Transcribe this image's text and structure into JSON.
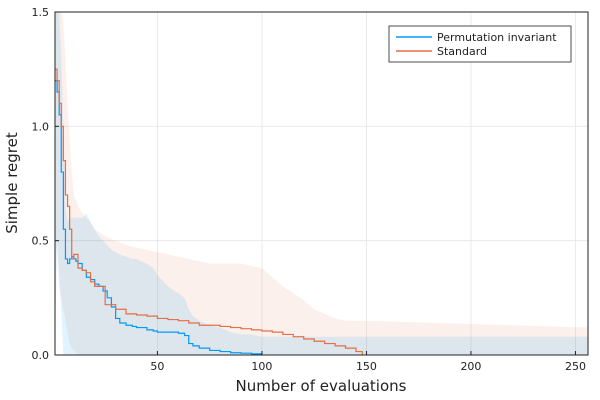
{
  "chart_data": {
    "type": "line",
    "xlabel": "Number of evaluations",
    "ylabel": "Simple regret",
    "xlim": [
      1,
      256
    ],
    "ylim": [
      0,
      1.5
    ],
    "x_ticks": [
      50,
      100,
      150,
      200,
      250
    ],
    "y_ticks": [
      0.0,
      0.5,
      1.0,
      1.5
    ],
    "x_tick_labels": [
      "50",
      "100",
      "150",
      "200",
      "250"
    ],
    "y_tick_labels": [
      "0.0",
      "0.5",
      "1.0",
      "1.5"
    ],
    "grid": true,
    "legend_position": "top-right",
    "series": [
      {
        "name": "Permutation invariant",
        "color": "#009AFA",
        "band_opacity": 0.12,
        "x": [
          1,
          2,
          3,
          4,
          5,
          6,
          7,
          8,
          9,
          10,
          11,
          12,
          14,
          16,
          18,
          20,
          22,
          24,
          26,
          28,
          30,
          32,
          35,
          38,
          40,
          42,
          45,
          48,
          50,
          55,
          60,
          63,
          65,
          67,
          70,
          75,
          80,
          85,
          90,
          95,
          100,
          110,
          256
        ],
        "y": [
          1.2,
          1.15,
          1.05,
          0.8,
          0.55,
          0.42,
          0.4,
          0.42,
          0.43,
          0.42,
          0.41,
          0.4,
          0.37,
          0.34,
          0.33,
          0.31,
          0.3,
          0.28,
          0.25,
          0.21,
          0.16,
          0.14,
          0.13,
          0.125,
          0.12,
          0.12,
          0.11,
          0.105,
          0.1,
          0.1,
          0.095,
          0.085,
          0.05,
          0.04,
          0.03,
          0.02,
          0.015,
          0.01,
          0.008,
          0.005,
          0.0,
          0.0,
          0.0
        ],
        "upper": [
          1.5,
          1.5,
          1.5,
          1.3,
          1.0,
          0.65,
          0.58,
          0.6,
          0.6,
          0.6,
          0.6,
          0.6,
          0.6,
          0.62,
          0.58,
          0.55,
          0.52,
          0.5,
          0.48,
          0.46,
          0.45,
          0.44,
          0.43,
          0.42,
          0.42,
          0.41,
          0.4,
          0.38,
          0.35,
          0.3,
          0.27,
          0.25,
          0.2,
          0.17,
          0.15,
          0.13,
          0.12,
          0.1,
          0.09,
          0.09,
          0.08,
          0.08,
          0.08
        ],
        "lower": [
          0.0,
          0.5,
          0.35,
          0.2,
          0.0,
          0.0,
          0.0,
          0.0,
          0.0,
          0.0,
          0.0,
          0.0,
          0.0,
          0.0,
          0.0,
          0.0,
          0.0,
          0.0,
          0.0,
          0.0,
          0.0,
          0.0,
          0.0,
          0.0,
          0.0,
          0.0,
          0.0,
          0.0,
          0.0,
          0.0,
          0.0,
          0.0,
          0.0,
          0.0,
          0.0,
          0.0,
          0.0,
          0.0,
          0.0,
          0.0,
          0.0,
          0.0,
          0.0
        ]
      },
      {
        "name": "Standard",
        "color": "#E26F46",
        "band_opacity": 0.1,
        "x": [
          1,
          2,
          3,
          4,
          5,
          6,
          7,
          8,
          9,
          10,
          12,
          14,
          16,
          18,
          20,
          25,
          30,
          35,
          40,
          45,
          50,
          55,
          60,
          65,
          70,
          75,
          80,
          85,
          90,
          95,
          100,
          105,
          110,
          115,
          120,
          125,
          130,
          135,
          140,
          145,
          148,
          256
        ],
        "y": [
          1.25,
          1.2,
          1.1,
          1.0,
          0.85,
          0.7,
          0.65,
          0.55,
          0.42,
          0.44,
          0.38,
          0.37,
          0.36,
          0.32,
          0.3,
          0.22,
          0.2,
          0.18,
          0.175,
          0.17,
          0.16,
          0.155,
          0.15,
          0.14,
          0.13,
          0.13,
          0.125,
          0.12,
          0.115,
          0.11,
          0.105,
          0.1,
          0.09,
          0.08,
          0.07,
          0.06,
          0.05,
          0.04,
          0.03,
          0.015,
          0.0,
          0.0
        ],
        "upper": [
          1.5,
          1.5,
          1.5,
          1.5,
          1.45,
          1.3,
          1.1,
          0.95,
          0.8,
          0.7,
          0.65,
          0.62,
          0.6,
          0.58,
          0.55,
          0.52,
          0.5,
          0.48,
          0.47,
          0.46,
          0.45,
          0.44,
          0.43,
          0.42,
          0.41,
          0.4,
          0.4,
          0.4,
          0.4,
          0.39,
          0.38,
          0.34,
          0.3,
          0.27,
          0.24,
          0.2,
          0.18,
          0.16,
          0.15,
          0.15,
          0.15,
          0.12
        ],
        "lower": [
          0.5,
          0.45,
          0.3,
          0.25,
          0.2,
          0.15,
          0.1,
          0.05,
          0.03,
          0.02,
          0.0,
          0.0,
          0.0,
          0.0,
          0.0,
          0.0,
          0.0,
          0.0,
          0.0,
          0.0,
          0.0,
          0.0,
          0.0,
          0.0,
          0.0,
          0.0,
          0.0,
          0.0,
          0.0,
          0.0,
          0.0,
          0.0,
          0.0,
          0.0,
          0.0,
          0.0,
          0.0,
          0.0,
          0.0,
          0.0,
          0.0,
          0.0
        ]
      }
    ]
  }
}
